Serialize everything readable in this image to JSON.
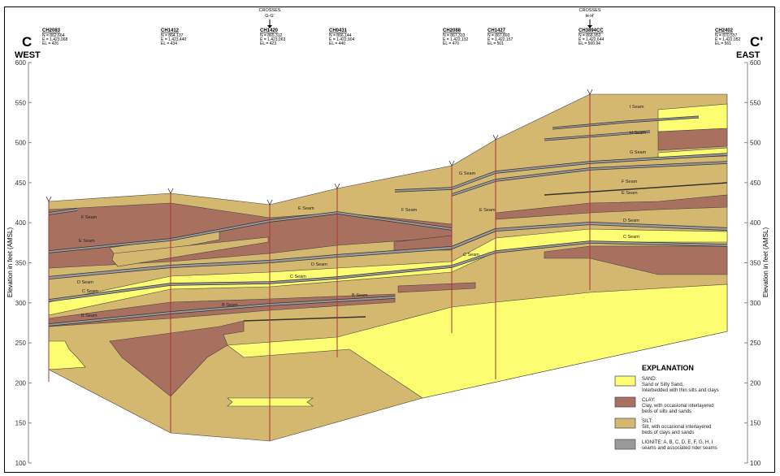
{
  "section": {
    "start_label": "C",
    "end_label": "C'",
    "west": "WEST",
    "east": "EAST"
  },
  "axis": {
    "title": "Elevation in feet (AMSL)",
    "ticks": [
      "600",
      "550",
      "500",
      "450",
      "400",
      "350",
      "300",
      "250",
      "200",
      "150",
      "100"
    ]
  },
  "crosses": [
    {
      "label": "CROSSES",
      "ref": "G-G'"
    },
    {
      "label": "CROSSES",
      "ref": "H-H'"
    }
  ],
  "wells": [
    {
      "name": "CH2083",
      "n": "N = 862,664",
      "e": "E = 1,423,068",
      "el": "EL = 426"
    },
    {
      "name": "CH1412",
      "n": "N = 864,137",
      "e": "E = 1,423,440",
      "el": "EL = 434"
    },
    {
      "name": "CH1420",
      "n": "N = 865,312",
      "e": "E = 1,423,063",
      "el": "EL = 423"
    },
    {
      "name": "CH0431",
      "n": "N = 866,144",
      "e": "E = 1,422,904",
      "el": "EL = 440"
    },
    {
      "name": "CH2088",
      "n": "N = 867,333",
      "e": "E = 1,422,132",
      "el": "EL = 470"
    },
    {
      "name": "CH1427",
      "n": "N = 867,893",
      "e": "E = 1,422,157",
      "el": "EL = 501"
    },
    {
      "name": "CH3894CC",
      "n": "N = 868,953",
      "e": "E = 1,422,644",
      "el": "EL = 560.94"
    },
    {
      "name": "CH2402",
      "n": "N = 870,557",
      "e": "E = 1,422,052",
      "el": "EL = 561"
    }
  ],
  "seams": [
    "F Seam",
    "E Seam",
    "D Seam",
    "C Seam",
    "B Seam",
    "B Seam",
    "C Seam",
    "D Seam",
    "E Seam",
    "B Seam",
    "F Seam",
    "E Seam",
    "G Seam",
    "C Seam",
    "I Seam",
    "H Seam",
    "G Seam",
    "F Seam",
    "E Seam",
    "D Seam",
    "C Seam"
  ],
  "legend": {
    "title": "EXPLANATION",
    "items": [
      {
        "name": "SAND:",
        "desc1": "Sand or Silty Sand,",
        "desc2": "Interbedded with thin silts and clays",
        "color": "#fdfd72"
      },
      {
        "name": "CLAY:",
        "desc1": "Clay, with occasional interlayered",
        "desc2": "beds of silts and sands",
        "color": "#a8705f"
      },
      {
        "name": "SILT:",
        "desc1": "Silt, with occasional interlayered",
        "desc2": "beds of clays and sands",
        "color": "#d5b870"
      },
      {
        "name": "LIGNITE: A, B, C, D, E, F, G, H, I",
        "desc1": "seams and associated rider seams",
        "desc2": "",
        "color": "#9a9a9a"
      }
    ]
  }
}
